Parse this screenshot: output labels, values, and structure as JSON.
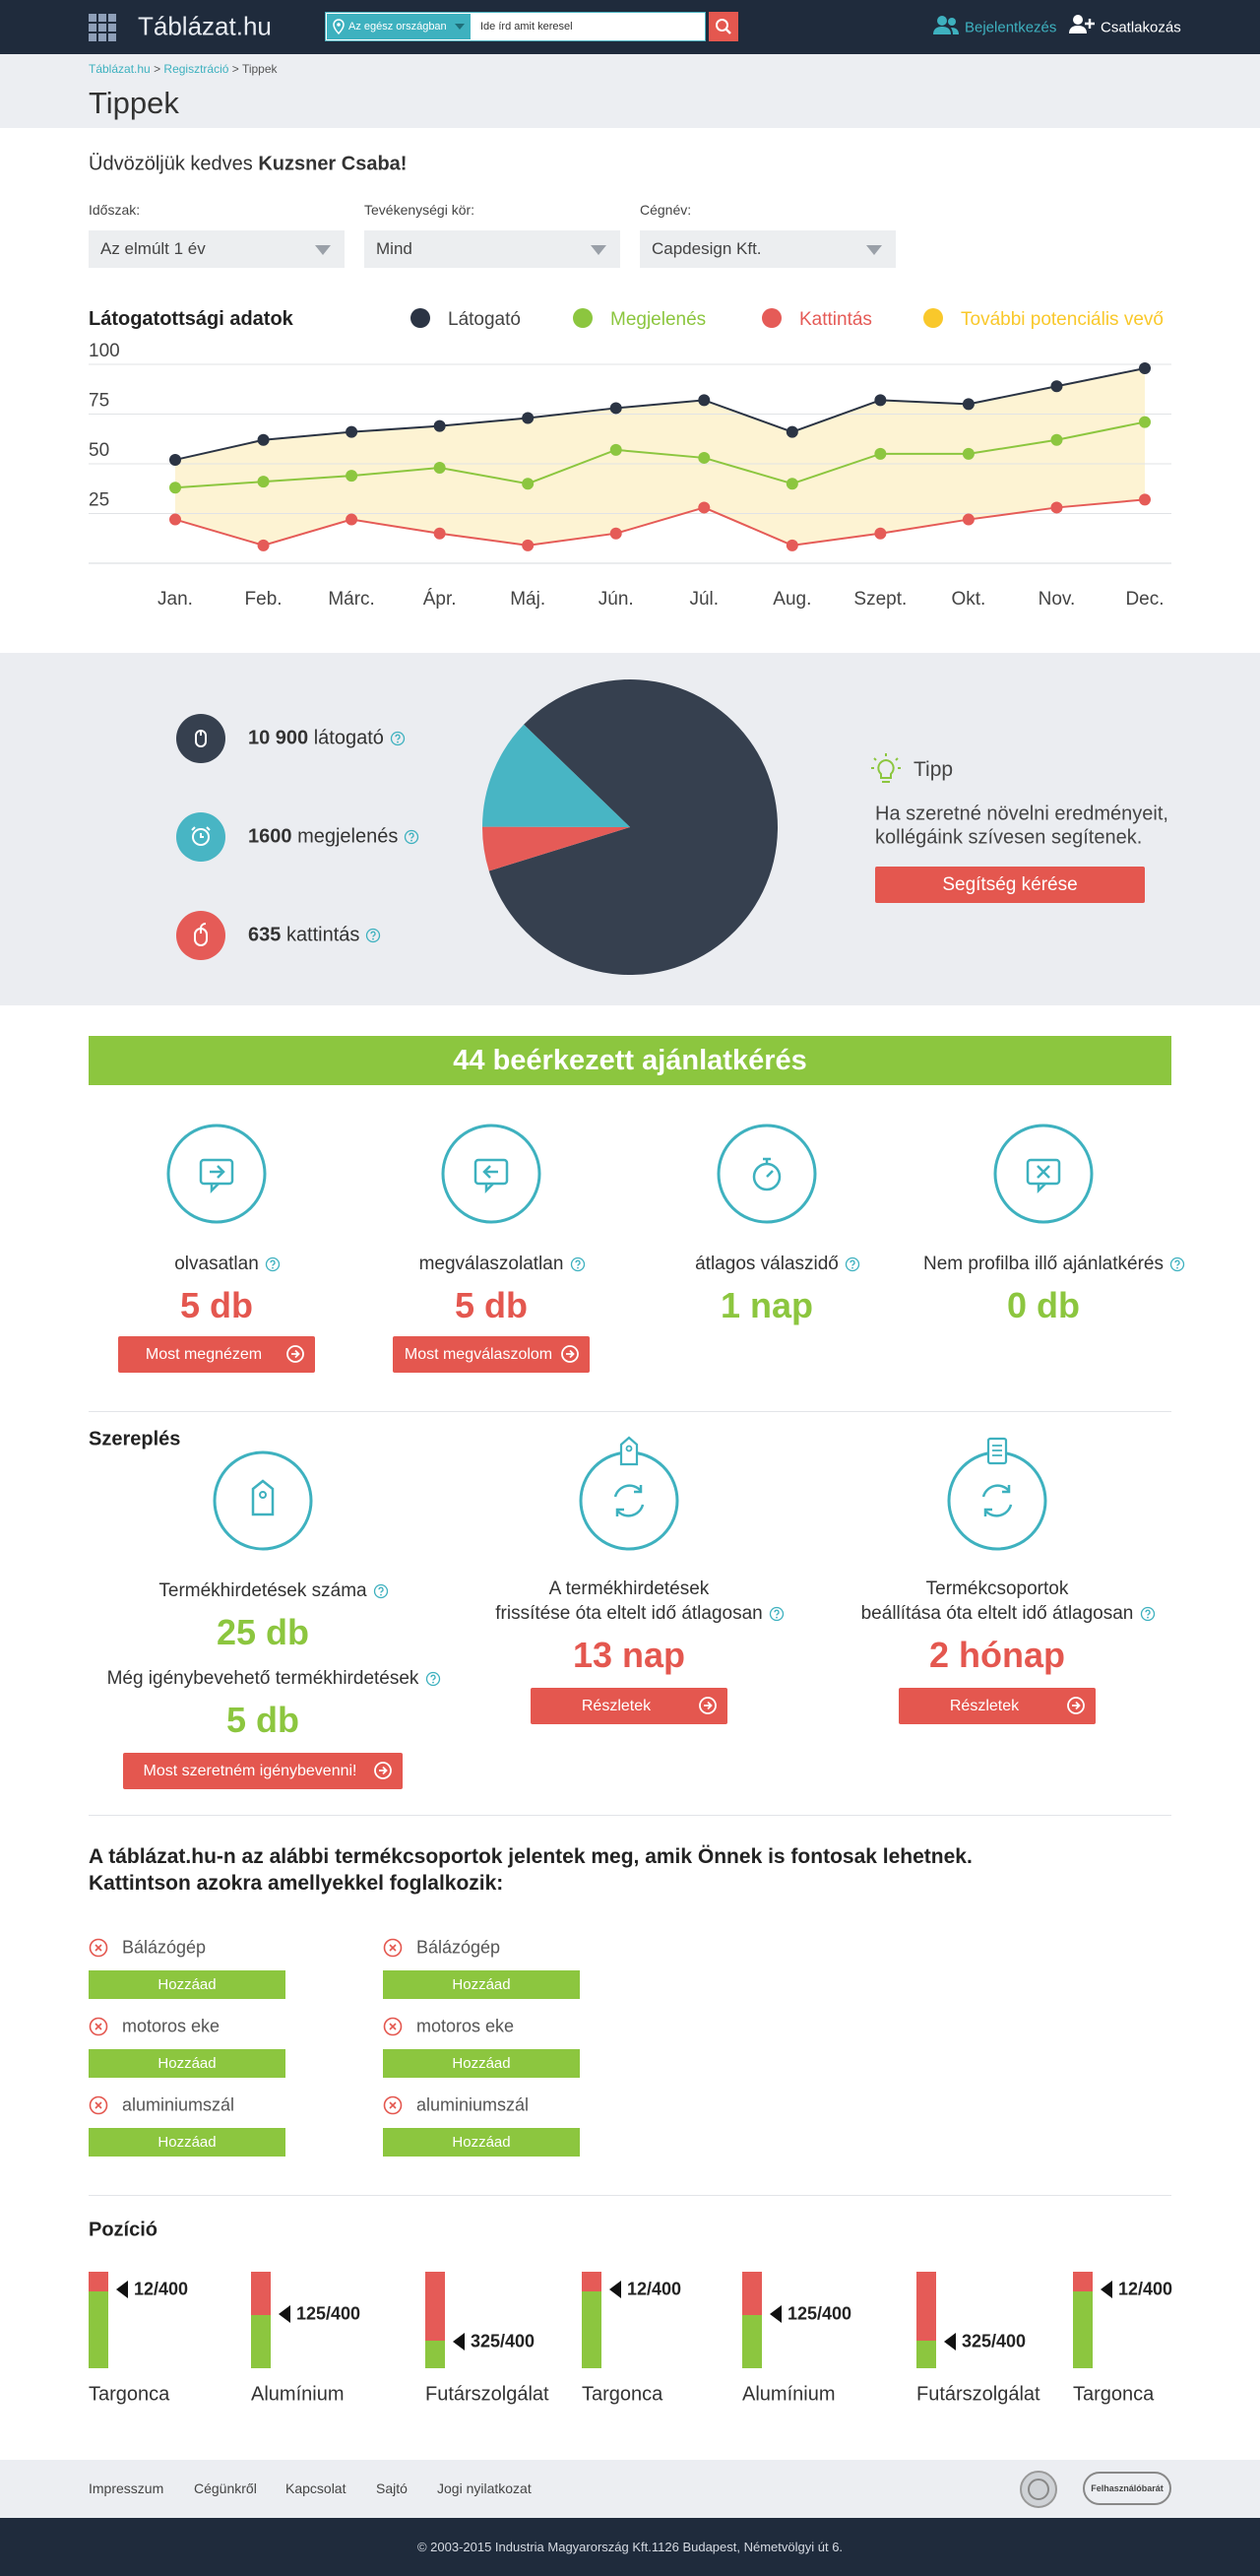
{
  "header": {
    "logo": "Táblázat.hu",
    "region": "Az egész országban",
    "search_placeholder": "Ide írd amit keresel",
    "login": "Bejelentkezés",
    "join": "Csatlakozás"
  },
  "breadcrumb": {
    "items": [
      "Táblázat.hu",
      "Regisztráció",
      "Tippek"
    ],
    "separator": ">"
  },
  "page_title": "Tippek",
  "welcome": {
    "text": "Üdvözöljük kedves",
    "name": "Kuzsner Csaba!"
  },
  "filters": [
    {
      "label": "Időszak:",
      "value": "Az elmúlt 1 év"
    },
    {
      "label": "Tevékenységi kör:",
      "value": "Mind"
    },
    {
      "label": "Cégnév:",
      "value": "Capdesign Kft."
    }
  ],
  "visits_chart": {
    "type": "line",
    "title": "Látogatottsági adatok",
    "categories": [
      "Jan.",
      "Feb.",
      "Márc.",
      "Ápr.",
      "Máj.",
      "Jún.",
      "Júl.",
      "Aug.",
      "Szept.",
      "Okt.",
      "Nov.",
      "Dec."
    ],
    "series": [
      {
        "name": "Látogató",
        "color": "#2b3444",
        "values": [
          52,
          62,
          66,
          69,
          73,
          78,
          82,
          66,
          82,
          80,
          89,
          98
        ]
      },
      {
        "name": "Megjelenés",
        "color": "#8cc63f",
        "values": [
          38,
          41,
          44,
          48,
          40,
          57,
          53,
          40,
          55,
          55,
          62,
          71
        ]
      },
      {
        "name": "Kattintás",
        "color": "#e55b57",
        "values": [
          22,
          9,
          22,
          15,
          9,
          15,
          28,
          9,
          15,
          22,
          28,
          32
        ]
      }
    ],
    "area": {
      "name": "További potenciális vevő",
      "color": "#f9c82b",
      "fill": "#fdf3d3"
    },
    "ylim": [
      0,
      100
    ],
    "yticks": [
      25,
      50,
      75,
      100
    ],
    "grid": true
  },
  "stats": [
    {
      "value": 10900,
      "value_label": "10 900",
      "unit": "látogató",
      "color": "#36404f"
    },
    {
      "value": 1600,
      "value_label": "1600",
      "unit": "megjelenés",
      "color": "#48b5c4"
    },
    {
      "value": 635,
      "value_label": "635",
      "unit": "kattintás",
      "color": "#e55b57"
    }
  ],
  "tip": {
    "title": "Tipp",
    "lines": [
      "Ha szeretné növelni eredményeit,",
      "kollégáink szívesen segítenek."
    ],
    "button": "Segítség kérése"
  },
  "requests": {
    "banner": "44 beérkezett ajánlatkérés",
    "items": [
      {
        "label": "olvasatlan",
        "value": "5 db",
        "color": "#e4574f",
        "button": "Most megnézem"
      },
      {
        "label": "megválaszolatlan",
        "value": "5 db",
        "color": "#e4574f",
        "button": "Most megválaszolom"
      },
      {
        "label": "átlagos válaszidő",
        "value": "1 nap",
        "color": "#8cc63f"
      },
      {
        "label": "Nem profilba illő ajánlatkérés",
        "value": "0 db",
        "color": "#8cc63f"
      }
    ]
  },
  "performance": {
    "title": "Szereplés",
    "items": [
      {
        "label": [
          "Termékhirdetések száma"
        ],
        "value": "25 db",
        "color": "#8cc63f",
        "extra": {
          "label": "Még igénybevehető termékhirdetések",
          "value": "5 db"
        },
        "button": "Most szeretném igénybevenni!"
      },
      {
        "label": [
          "A termékhirdetések",
          "frissítése óta eltelt idő átlagosan"
        ],
        "value": "13 nap",
        "color": "#e4574f",
        "button": "Részletek"
      },
      {
        "label": [
          "Termékcsoportok",
          "beállítása óta eltelt idő átlagosan"
        ],
        "value": "2 hónap",
        "color": "#e4574f",
        "button": "Részletek"
      }
    ]
  },
  "suggestions": {
    "intro": [
      "A táblázat.hu-n az alábbi termékcsoportok jelentek meg, amik Önnek is fontosak lehetnek.",
      "Kattintson azokra amellyekkel foglalkozik:"
    ],
    "columns": [
      [
        "Bálázógép",
        "motoros eke",
        "aluminiumszál"
      ],
      [
        "Bálázógép",
        "motoros eke",
        "aluminiumszál"
      ]
    ],
    "button": "Hozzáad"
  },
  "position": {
    "title": "Pozíció",
    "items": [
      {
        "rank": "12/400",
        "name": "Targonca"
      },
      {
        "rank": "125/400",
        "name": "Alumínium"
      },
      {
        "rank": "325/400",
        "name": "Futárszolgálat"
      },
      {
        "rank": "12/400",
        "name": "Targonca"
      },
      {
        "rank": "125/400",
        "name": "Alumínium"
      },
      {
        "rank": "325/400",
        "name": "Futárszolgálat"
      },
      {
        "rank": "12/400",
        "name": "Targonca"
      }
    ]
  },
  "footer": {
    "links": [
      "Impresszum",
      "Cégünkről",
      "Kapcsolat",
      "Sajtó",
      "Jogi nyilatkozat"
    ],
    "badge": "Felhasználóbarát",
    "copyright": "© 2003-2015 Industria Magyarország Kft.1126 Budapest, Németvölgyi út 6."
  }
}
